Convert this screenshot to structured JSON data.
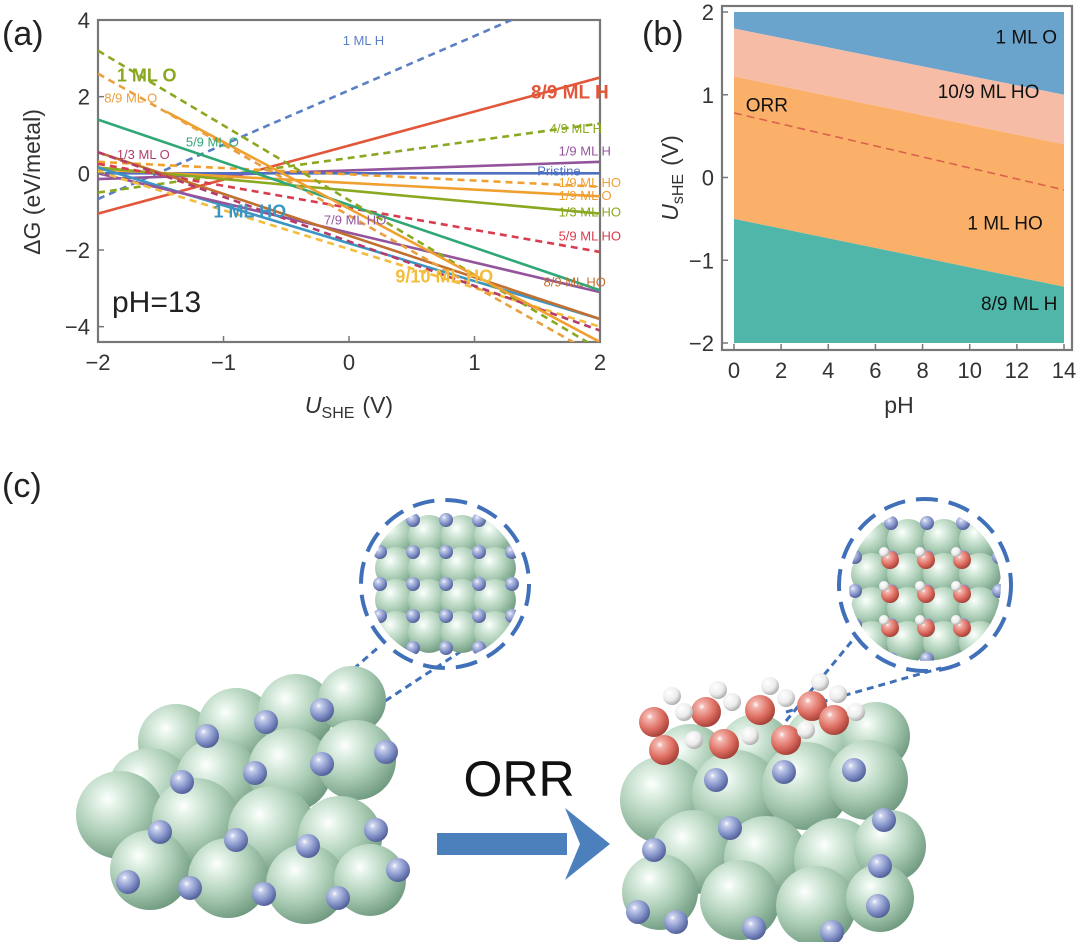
{
  "panels": {
    "a": "(a)",
    "b": "(b)",
    "c": "(c)"
  },
  "chart_data": [
    {
      "type": "line",
      "panel": "a",
      "xlabel_main": "U",
      "xlabel_sub": "SHE",
      "xlabel_unit": "(V)",
      "ylabel": "ΔG  (eV/metal)",
      "xlim": [
        -2,
        2
      ],
      "ylim": [
        -4.4,
        4
      ],
      "xticks": [
        -2,
        -1,
        0,
        1,
        2
      ],
      "yticks": [
        -4,
        -2,
        0,
        2,
        4
      ],
      "xtick_labels": [
        "−2",
        "−1",
        "0",
        "1",
        "2"
      ],
      "ytick_labels": [
        "−4",
        "−2",
        "0",
        "2",
        "4"
      ],
      "annotation": "pH=13",
      "grid": false,
      "series": [
        {
          "name": "1 ML H",
          "color": "#5a7fc4",
          "dash": true,
          "x": [
            -2,
            2
          ],
          "y": [
            -0.67,
            5.0
          ],
          "label_at": [
            -0.05,
            3.35
          ],
          "label_size": 13,
          "label_bold": false
        },
        {
          "name": "8/9 ML H",
          "color": "#e2573a",
          "dash": false,
          "x": [
            -2,
            2
          ],
          "y": [
            -1.05,
            2.5
          ],
          "label_at": [
            1.45,
            1.95
          ],
          "label_size": 19,
          "label_bold": true
        },
        {
          "name": "4/9 ML H",
          "color": "#8aa820",
          "dash": true,
          "x": [
            -2,
            2
          ],
          "y": [
            -0.5,
            1.3
          ],
          "label_at": [
            1.6,
            1.05
          ],
          "label_size": 13,
          "label_bold": false
        },
        {
          "name": "1/9 ML H",
          "color": "#94549c",
          "dash": false,
          "x": [
            -2,
            2
          ],
          "y": [
            -0.15,
            0.3
          ],
          "label_at": [
            1.67,
            0.46
          ],
          "label_size": 13,
          "label_bold": false
        },
        {
          "name": "Pristine",
          "color": "#4f6fc2",
          "dash": false,
          "x": [
            -2,
            2
          ],
          "y": [
            0,
            0
          ],
          "label_at": [
            1.5,
            -0.05
          ],
          "label_size": 13,
          "label_bold": false
        },
        {
          "name": "1/9 ML HO",
          "color": "#f0a030",
          "dash": true,
          "x": [
            -2,
            2
          ],
          "y": [
            0.3,
            -0.35
          ],
          "label_at": [
            1.67,
            -0.35
          ],
          "label_size": 13,
          "label_bold": false
        },
        {
          "name": "1/9 ML O",
          "color": "#f0a030",
          "dash": false,
          "x": [
            -2,
            2
          ],
          "y": [
            0.1,
            -0.6
          ],
          "label_at": [
            1.67,
            -0.7
          ],
          "label_size": 13,
          "label_bold": false
        },
        {
          "name": "1/3 ML HO",
          "color": "#8aa820",
          "dash": false,
          "x": [
            -2,
            2
          ],
          "y": [
            0.15,
            -1.05
          ],
          "label_at": [
            1.67,
            -1.12
          ],
          "label_size": 13,
          "label_bold": false
        },
        {
          "name": "5/9 ML HO",
          "color": "#d93c4e",
          "dash": true,
          "x": [
            -2,
            2
          ],
          "y": [
            0.25,
            -2.05
          ],
          "label_at": [
            1.67,
            -1.75
          ],
          "label_size": 13,
          "label_bold": false
        },
        {
          "name": "1 ML HO",
          "color": "#3b95c2",
          "dash": false,
          "x": [
            -2,
            2
          ],
          "y": [
            0.15,
            -3.8
          ],
          "label_at": [
            -1.08,
            -1.15
          ],
          "label_size": 18,
          "label_bold": true
        },
        {
          "name": "7/9 ML HO",
          "color": "#94549c",
          "dash": false,
          "x": [
            -2,
            2
          ],
          "y": [
            0.0,
            -3.1
          ],
          "label_at": [
            -0.2,
            -1.33
          ],
          "label_size": 13,
          "label_bold": false
        },
        {
          "name": "9/10 ML HO",
          "color": "#f4bc3c",
          "dash": true,
          "x": [
            -2,
            2
          ],
          "y": [
            0.05,
            -4.0
          ],
          "label_at": [
            0.37,
            -2.85
          ],
          "label_size": 18,
          "label_bold": true
        },
        {
          "name": "8/9 ML HO",
          "color": "#c27030",
          "dash": false,
          "x": [
            -2,
            2
          ],
          "y": [
            0.55,
            -3.8
          ],
          "label_at": [
            1.55,
            -2.95
          ],
          "label_size": 13,
          "label_bold": false
        },
        {
          "name": "5/9 ML O",
          "color": "#2fa876",
          "dash": false,
          "x": [
            -2,
            2
          ],
          "y": [
            1.4,
            -3.05
          ],
          "label_at": [
            -1.3,
            0.7
          ],
          "label_size": 13,
          "label_bold": false
        },
        {
          "name": "1 ML O",
          "color": "#8aa820",
          "dash": true,
          "x": [
            -2,
            2
          ],
          "y": [
            3.2,
            -4.6
          ],
          "label_at": [
            -1.85,
            2.4
          ],
          "label_size": 18,
          "label_bold": true
        },
        {
          "name": "8/9 ML O",
          "color": "#e8a040",
          "dash": true,
          "x": [
            -2,
            2
          ],
          "y": [
            2.6,
            -4.8
          ],
          "label_at": [
            -1.95,
            1.85
          ],
          "label_size": 13,
          "label_bold": false
        },
        {
          "name": "1/3 ML O",
          "color": "#b43c6c",
          "dash": true,
          "x": [
            -2,
            2
          ],
          "y": [
            0.55,
            -4.1
          ],
          "label_at": [
            -1.85,
            0.38
          ],
          "label_size": 13,
          "label_bold": false
        },
        {
          "name": "",
          "color": "#f0a030",
          "dash": false,
          "x": [
            -1.45,
            2
          ],
          "y": [
            1.6,
            -4.4
          ],
          "label_at": null,
          "label_size": 0,
          "label_bold": false
        }
      ]
    },
    {
      "type": "area",
      "panel": "b",
      "xlabel": "pH",
      "ylabel_main": "U",
      "ylabel_sub": "sHE",
      "ylabel_unit": "(V)",
      "xlim": [
        0,
        14
      ],
      "ylim": [
        -2,
        2
      ],
      "xticks": [
        0,
        2,
        4,
        6,
        8,
        10,
        12,
        14
      ],
      "yticks": [
        -2,
        -1,
        0,
        1,
        2
      ],
      "xtick_labels": [
        "0",
        "2",
        "4",
        "6",
        "8",
        "10",
        "12",
        "14"
      ],
      "ytick_labels": [
        "−2",
        "−1",
        "0",
        "1",
        "2"
      ],
      "regions": [
        {
          "name": "1 ML O",
          "color": "#6aa3cc",
          "lower": [
            1.8,
            1.0
          ],
          "upper": [
            2.0,
            2.0
          ],
          "label_at": [
            12.4,
            1.62
          ]
        },
        {
          "name": "10/9 ML HO",
          "color": "#f6bca6",
          "lower": [
            1.22,
            0.4
          ],
          "upper": [
            1.8,
            1.0
          ],
          "label_at": [
            10.8,
            0.96
          ]
        },
        {
          "name": "1 ML HO",
          "color": "#fbb069",
          "lower": [
            -0.5,
            -1.32
          ],
          "upper": [
            1.22,
            0.4
          ],
          "label_at": [
            11.5,
            -0.63
          ]
        },
        {
          "name": "8/9 ML H",
          "color": "#4fb6a9",
          "lower": [
            -2.0,
            -2.0
          ],
          "upper": [
            -0.5,
            -1.32
          ],
          "label_at": [
            12.1,
            -1.6
          ]
        }
      ],
      "reference_line": {
        "name": "ORR",
        "color": "#d9624c",
        "y": [
          0.78,
          -0.15
        ],
        "label_at": [
          0.5,
          0.8
        ]
      }
    }
  ],
  "scheme": {
    "arrow_label": "ORR"
  },
  "colors": {
    "metal_atom": "#a9cdb5",
    "n_atom": "#7f8fc7",
    "o_atom": "#e07468",
    "h_atom": "#f4f4f4",
    "zoom_line": "#3f70b8",
    "arrow": "#4b80bc"
  }
}
